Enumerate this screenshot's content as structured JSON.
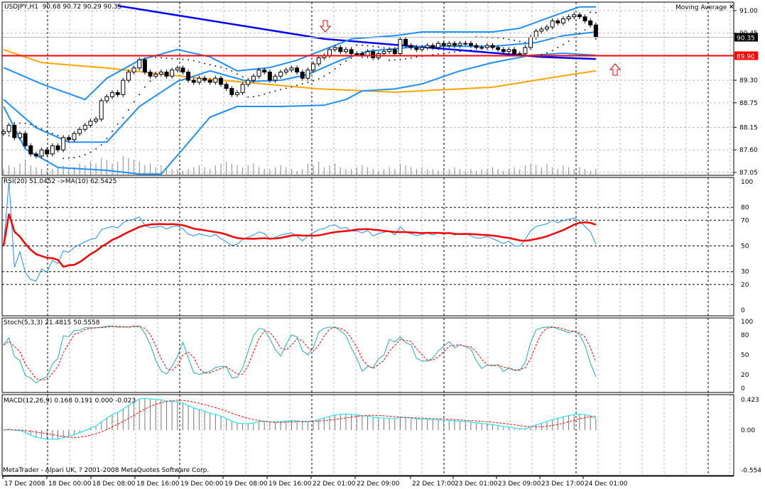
{
  "header": {
    "symbol": "USDJPY,H1",
    "open": "90.68",
    "high": "90.72",
    "low": "90.29",
    "close": "90.35"
  },
  "indicator_label": "Moving Average",
  "close_icon": "close-x-icon",
  "copyright": "MetaTrader - Alpari UK, ? 2001-2008 MetaQuotes Software Corp.",
  "colors": {
    "bull": "#ffffff",
    "bear": "#000000",
    "ma_slow": "#0000ff",
    "ma_orange": "#ffa500",
    "bands": "#1e90ff",
    "hline": "#ff0000",
    "rsi": "#1e90ff",
    "rsi_ma": "#ff0000",
    "stoch_main": "#20b2aa",
    "stoch_signal": "#ff0000",
    "macd_line": "#00e5ff",
    "macd_signal": "#ff0000"
  },
  "chart_data": [
    {
      "type": "candlestick",
      "panel": "main",
      "x_tick_labels": [
        "17 Dec 2008",
        "18 Dec 00:00",
        "18 Dec 08:00",
        "18 Dec 16:00",
        "19 Dec 00:00",
        "19 Dec 08:00",
        "19 Dec 16:00",
        "22 Dec 01:00",
        "22 Dec 09:00",
        "22 Dec 17:00",
        "23 Dec 01:00",
        "23 Dec 09:00",
        "23 Dec 17:00",
        "24 Dec 01:00"
      ],
      "y_tick_labels": [
        "91.00",
        "90.45",
        "89.30",
        "88.75",
        "88.15",
        "87.60",
        "87.05"
      ],
      "ylim": [
        87.05,
        91.0
      ],
      "current_price_label": "90.35",
      "horizontal_line_label": "89.90",
      "horizontal_line_value": 89.9,
      "closes": [
        88.05,
        88.2,
        87.9,
        88.0,
        87.7,
        87.5,
        87.45,
        87.6,
        87.5,
        87.7,
        87.6,
        87.9,
        87.85,
        88.0,
        88.1,
        88.2,
        88.3,
        88.35,
        88.8,
        88.9,
        89.0,
        88.95,
        89.3,
        89.5,
        89.6,
        89.8,
        89.5,
        89.4,
        89.45,
        89.5,
        89.4,
        89.55,
        89.6,
        89.5,
        89.3,
        89.25,
        89.35,
        89.3,
        89.25,
        89.35,
        89.2,
        89.1,
        88.95,
        89.0,
        89.2,
        89.3,
        89.4,
        89.55,
        89.5,
        89.3,
        89.4,
        89.5,
        89.55,
        89.6,
        89.5,
        89.35,
        89.55,
        89.7,
        89.85,
        89.9,
        90.05,
        90.1,
        90.0,
        90.05,
        89.95,
        89.95,
        89.9,
        90.0,
        89.85,
        89.95,
        90.0,
        90.05,
        89.95,
        90.3,
        90.15,
        90.1,
        90.05,
        90.1,
        90.15,
        90.1,
        90.2,
        90.15,
        90.2,
        90.15,
        90.2,
        90.2,
        90.15,
        90.1,
        90.1,
        90.15,
        90.1,
        90.05,
        90.0,
        90.05,
        89.95,
        89.95,
        90.1,
        90.35,
        90.5,
        90.55,
        90.6,
        90.75,
        90.7,
        90.8,
        90.85,
        90.9,
        90.85,
        90.75,
        90.65,
        90.35
      ],
      "volume": [
        3,
        5,
        4,
        6,
        8,
        5,
        4,
        3,
        2,
        3,
        4,
        5,
        3,
        4,
        6,
        5,
        7,
        6,
        9,
        8,
        6,
        7,
        10,
        9,
        8,
        7,
        5,
        6,
        4,
        5,
        4,
        3,
        3,
        2,
        3,
        4,
        5,
        4,
        3,
        5,
        6,
        7,
        6,
        5,
        4,
        5,
        6,
        4,
        3,
        3,
        4,
        5,
        4,
        3,
        2,
        3,
        6,
        5,
        7,
        4,
        5,
        6,
        4,
        3,
        3,
        4,
        5,
        4,
        3,
        2,
        3,
        4,
        3,
        6,
        5,
        4,
        3,
        4,
        3,
        3,
        2,
        3,
        3,
        4,
        3,
        2,
        3,
        2,
        3,
        3,
        4,
        3,
        2,
        3,
        4,
        3,
        5,
        6,
        5,
        4,
        6,
        4,
        3,
        5,
        4,
        3,
        4,
        3,
        2,
        3
      ],
      "overlays": [
        {
          "name": "slow-ma",
          "points": [
            [
              21,
              91.12
            ],
            [
              59,
              90.31
            ],
            [
              99,
              89.87
            ],
            [
              109,
              89.82
            ]
          ]
        },
        {
          "name": "orange-ma",
          "points": [
            [
              0,
              90.05
            ],
            [
              7,
              89.73
            ],
            [
              19,
              89.6
            ],
            [
              36,
              89.35
            ],
            [
              58,
              89.09
            ],
            [
              72,
              89.01
            ],
            [
              90,
              89.13
            ],
            [
              103,
              89.41
            ],
            [
              109,
              89.53
            ]
          ]
        },
        {
          "name": "bollinger-upper",
          "points": [
            [
              0,
              89.61
            ],
            [
              7,
              89.21
            ],
            [
              15,
              88.83
            ],
            [
              19,
              89.35
            ],
            [
              25,
              89.79
            ],
            [
              32,
              90.05
            ],
            [
              38,
              89.87
            ],
            [
              43,
              89.53
            ],
            [
              49,
              89.61
            ],
            [
              54,
              89.79
            ],
            [
              59,
              90.05
            ],
            [
              64,
              90.31
            ],
            [
              72,
              90.39
            ],
            [
              77,
              90.48
            ],
            [
              90,
              90.48
            ],
            [
              95,
              90.57
            ],
            [
              102,
              90.91
            ],
            [
              106,
              91.09
            ],
            [
              109,
              91.09
            ]
          ]
        },
        {
          "name": "bollinger-middle",
          "points": [
            [
              0,
              88.83
            ],
            [
              6,
              88.14
            ],
            [
              12,
              87.79
            ],
            [
              19,
              87.79
            ],
            [
              25,
              88.66
            ],
            [
              32,
              89.27
            ],
            [
              38,
              89.53
            ],
            [
              45,
              89.27
            ],
            [
              51,
              89.3
            ],
            [
              56,
              89.44
            ],
            [
              62,
              89.79
            ],
            [
              67,
              90.01
            ],
            [
              77,
              90.13
            ],
            [
              90,
              90.13
            ],
            [
              98,
              90.22
            ],
            [
              103,
              90.39
            ],
            [
              109,
              90.48
            ]
          ]
        },
        {
          "name": "bollinger-lower",
          "points": [
            [
              0,
              88.66
            ],
            [
              4,
              87.62
            ],
            [
              10,
              87.17
            ],
            [
              19,
              87.1
            ],
            [
              25,
              87.01
            ],
            [
              29,
              87.01
            ],
            [
              33,
              87.62
            ],
            [
              38,
              88.4
            ],
            [
              43,
              88.66
            ],
            [
              51,
              88.66
            ],
            [
              59,
              88.69
            ],
            [
              63,
              88.83
            ],
            [
              66,
              89.04
            ],
            [
              72,
              89.09
            ],
            [
              77,
              89.21
            ],
            [
              84,
              89.53
            ],
            [
              90,
              89.73
            ],
            [
              97,
              89.91
            ],
            [
              103,
              89.96
            ],
            [
              109,
              89.91
            ]
          ]
        }
      ]
    },
    {
      "type": "line",
      "panel": "rsi",
      "title": "RSI(20) 51.0452  ->MA(10) 62.5425",
      "y_tick_labels": [
        "100",
        "80",
        "70",
        "50",
        "30",
        "20",
        "0"
      ],
      "ylim": [
        0,
        100
      ],
      "levels": [
        80,
        70,
        50,
        30,
        20
      ]
    },
    {
      "type": "line",
      "panel": "stochastic",
      "title": "Stoch(5,3,3) 21.4815 50.5558",
      "y_tick_labels": [
        "100",
        "80",
        "50",
        "20",
        "0"
      ],
      "ylim": [
        0,
        100
      ]
    },
    {
      "type": "bar",
      "panel": "macd",
      "title": "MACD(12,26,9) 0.168 0.191 0.000 -0.023",
      "y_tick_labels": [
        "0.423",
        "0.00",
        "-0.554"
      ],
      "ylim": [
        -0.554,
        0.423
      ]
    }
  ]
}
